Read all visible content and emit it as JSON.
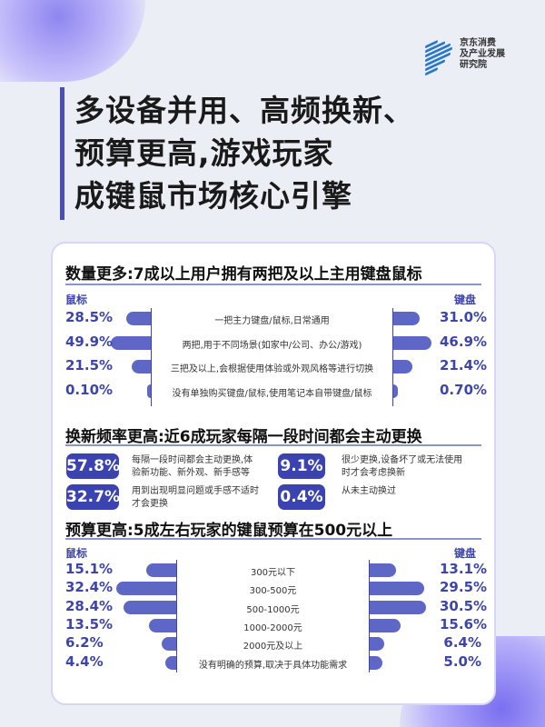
{
  "logo": {
    "text": [
      "京东消费",
      "及产业发展",
      "研究院"
    ]
  },
  "title": [
    "多设备并用、高频换新、",
    "预算更高,游戏玩家",
    "成键鼠市场核心引擎"
  ],
  "colors": {
    "accent": "#3e45a8",
    "bar": "#5e66c6",
    "badge": "#3b43b0"
  },
  "chart_data": [
    {
      "type": "bar",
      "title": "数量更多:7成以上用户拥有两把及以上主用键盘鼠标",
      "left_label": "鼠标",
      "right_label": "键盘",
      "categories": [
        "一把主力键盘/鼠标,日常通用",
        "两把,用于不同场景(如家中/公司、办公/游戏)",
        "三把及以上,会根据使用体验或外观风格等进行切换",
        "没有单独购买键盘/鼠标,使用笔记本自带键盘/鼠标"
      ],
      "series": [
        {
          "name": "鼠标",
          "values": [
            28.5,
            49.9,
            21.5,
            0.1
          ],
          "labels": [
            "28.5%",
            "49.9%",
            "21.5%",
            "0.10%"
          ]
        },
        {
          "name": "键盘",
          "values": [
            31.0,
            46.9,
            21.4,
            0.7
          ],
          "labels": [
            "31.0%",
            "46.9%",
            "21.4%",
            "0.70%"
          ]
        }
      ]
    },
    {
      "type": "bar",
      "title": "预算更高:5成左右玩家的键鼠预算在500元以上",
      "left_label": "鼠标",
      "right_label": "键盘",
      "categories": [
        "300元以下",
        "300-500元",
        "500-1000元",
        "1000-2000元",
        "2000元及以上",
        "没有明确的预算,取决于具体功能需求"
      ],
      "series": [
        {
          "name": "鼠标",
          "values": [
            15.1,
            32.4,
            28.4,
            13.5,
            6.2,
            4.4
          ],
          "labels": [
            "15.1%",
            "32.4%",
            "28.4%",
            "13.5%",
            "6.2%",
            "4.4%"
          ]
        },
        {
          "name": "键盘",
          "values": [
            13.1,
            29.5,
            30.5,
            15.6,
            6.4,
            5.0
          ],
          "labels": [
            "13.1%",
            "29.5%",
            "30.5%",
            "15.6%",
            "6.4%",
            "5.0%"
          ]
        }
      ]
    }
  ],
  "freq": {
    "title": "换新频率更高:近6成玩家每隔一段时间都会主动更换",
    "items": [
      {
        "value": "57.8%",
        "desc": "每隔一段时间都会主动更换,体验新功能、新外观、新手感等"
      },
      {
        "value": "9.1%",
        "desc": "很少更换,设备坏了或无法使用时才会考虑换新"
      },
      {
        "value": "32.7%",
        "desc": "用到出现明显问题或手感不适时才会更换"
      },
      {
        "value": "0.4%",
        "desc": "从未主动换过"
      }
    ]
  }
}
